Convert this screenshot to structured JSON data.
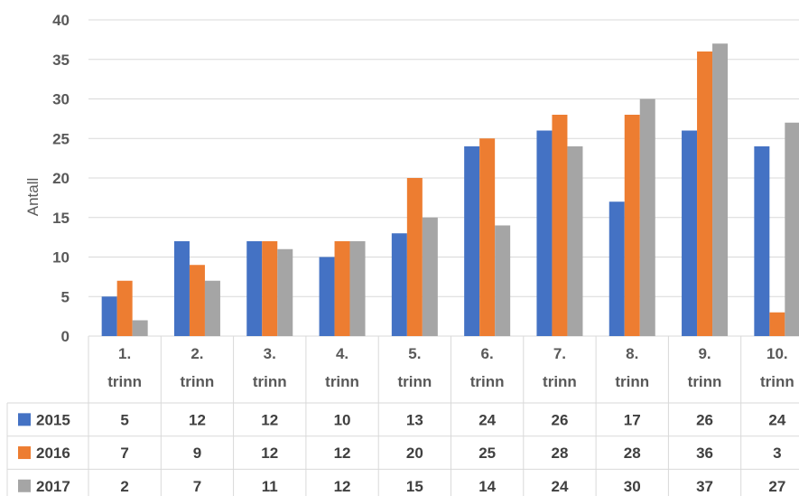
{
  "chart_data": {
    "type": "bar",
    "ylabel": "Antall",
    "ylim": [
      0,
      40
    ],
    "yticks": [
      0,
      5,
      10,
      15,
      20,
      25,
      30,
      35,
      40
    ],
    "grid": true,
    "legend_placement": "data-table-left",
    "categories": [
      [
        "1.",
        "trinn"
      ],
      [
        "2.",
        "trinn"
      ],
      [
        "3.",
        "trinn"
      ],
      [
        "4.",
        "trinn"
      ],
      [
        "5.",
        "trinn"
      ],
      [
        "6.",
        "trinn"
      ],
      [
        "7.",
        "trinn"
      ],
      [
        "8.",
        "trinn"
      ],
      [
        "9.",
        "trinn"
      ],
      [
        "10.",
        "trinn"
      ]
    ],
    "series": [
      {
        "name": "2015",
        "color": "#4472C4",
        "values": [
          5,
          12,
          12,
          10,
          13,
          24,
          26,
          17,
          26,
          24
        ]
      },
      {
        "name": "2016",
        "color": "#ED7D31",
        "values": [
          7,
          9,
          12,
          12,
          20,
          25,
          28,
          28,
          36,
          3
        ]
      },
      {
        "name": "2017",
        "color": "#A5A5A5",
        "values": [
          2,
          7,
          11,
          12,
          15,
          14,
          24,
          30,
          37,
          27
        ]
      }
    ]
  }
}
